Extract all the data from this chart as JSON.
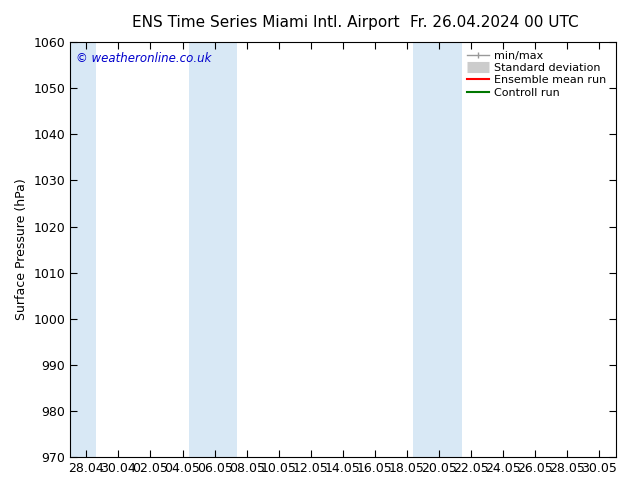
{
  "title_left": "ENS Time Series Miami Intl. Airport",
  "title_right": "Fr. 26.04.2024 00 UTC",
  "ylabel": "Surface Pressure (hPa)",
  "ylim": [
    970,
    1060
  ],
  "yticks": [
    970,
    980,
    990,
    1000,
    1010,
    1020,
    1030,
    1040,
    1050,
    1060
  ],
  "xtick_labels": [
    "28.04",
    "30.04",
    "02.05",
    "04.05",
    "06.05",
    "08.05",
    "10.05",
    "12.05",
    "14.05",
    "16.05",
    "18.05",
    "20.05",
    "22.05",
    "24.05",
    "26.05",
    "28.05",
    "30.05"
  ],
  "watermark": "© weatheronline.co.uk",
  "legend_entries": [
    "min/max",
    "Standard deviation",
    "Ensemble mean run",
    "Controll run"
  ],
  "legend_line_colors": [
    "#999999",
    "#cccccc",
    "#ff0000",
    "#007700"
  ],
  "band_color": "#d8e8f5",
  "background_color": "#ffffff",
  "plot_bg_color": "#ffffff",
  "title_fontsize": 11,
  "axis_fontsize": 9,
  "tick_fontsize": 9,
  "figure_width": 6.34,
  "figure_height": 4.9,
  "dpi": 100
}
